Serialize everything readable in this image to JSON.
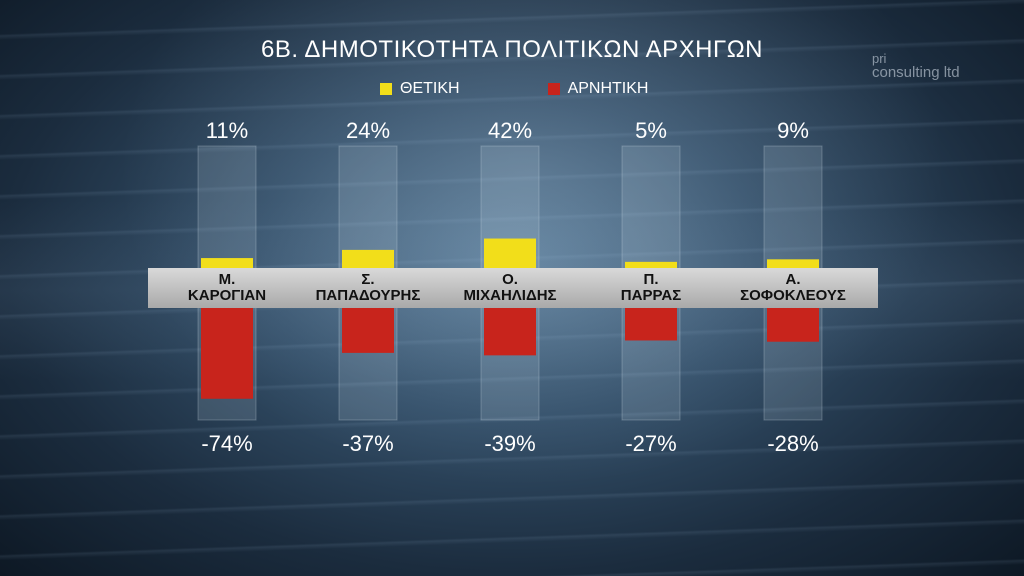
{
  "title": "6Β. ΔΗΜΟΤΙΚΟΤΗΤΑ ΠΟΛΙΤΙΚΩΝ ΑΡΧΗΓΩΝ",
  "logo": {
    "line1": "pri",
    "line2": "consulting ltd"
  },
  "chart_data": {
    "type": "bar",
    "title": "6Β. ΔΗΜΟΤΙΚΟΤΗΤΑ ΠΟΛΙΤΙΚΩΝ ΑΡΧΗΓΩΝ",
    "categories": [
      [
        "Μ.",
        "ΚΑΡΟΓΙΑΝ"
      ],
      [
        "Σ.",
        "ΠΑΠΑΔΟΥΡΗΣ"
      ],
      [
        "Ο.",
        "ΜΙΧΑΗΛΙΔΗΣ"
      ],
      [
        "Π.",
        "ΠΑΡΡΑΣ"
      ],
      [
        "Α.",
        "ΣΟΦΟΚΛΕΟΥΣ"
      ]
    ],
    "series": [
      {
        "name": "ΘΕΤΙΚΗ",
        "color": "#f2de1a",
        "values": [
          11,
          24,
          42,
          5,
          9
        ],
        "labels": [
          "11%",
          "24%",
          "42%",
          "5%",
          "9%"
        ]
      },
      {
        "name": "ΑΡΝΗΤΙΚΗ",
        "color": "#c8241c",
        "values": [
          -74,
          -37,
          -39,
          -27,
          -28
        ],
        "labels": [
          "-74%",
          "-37%",
          "-39%",
          "-27%",
          "-28%"
        ]
      }
    ],
    "ylim": [
      -100,
      100
    ],
    "legend_position": "top-center"
  }
}
